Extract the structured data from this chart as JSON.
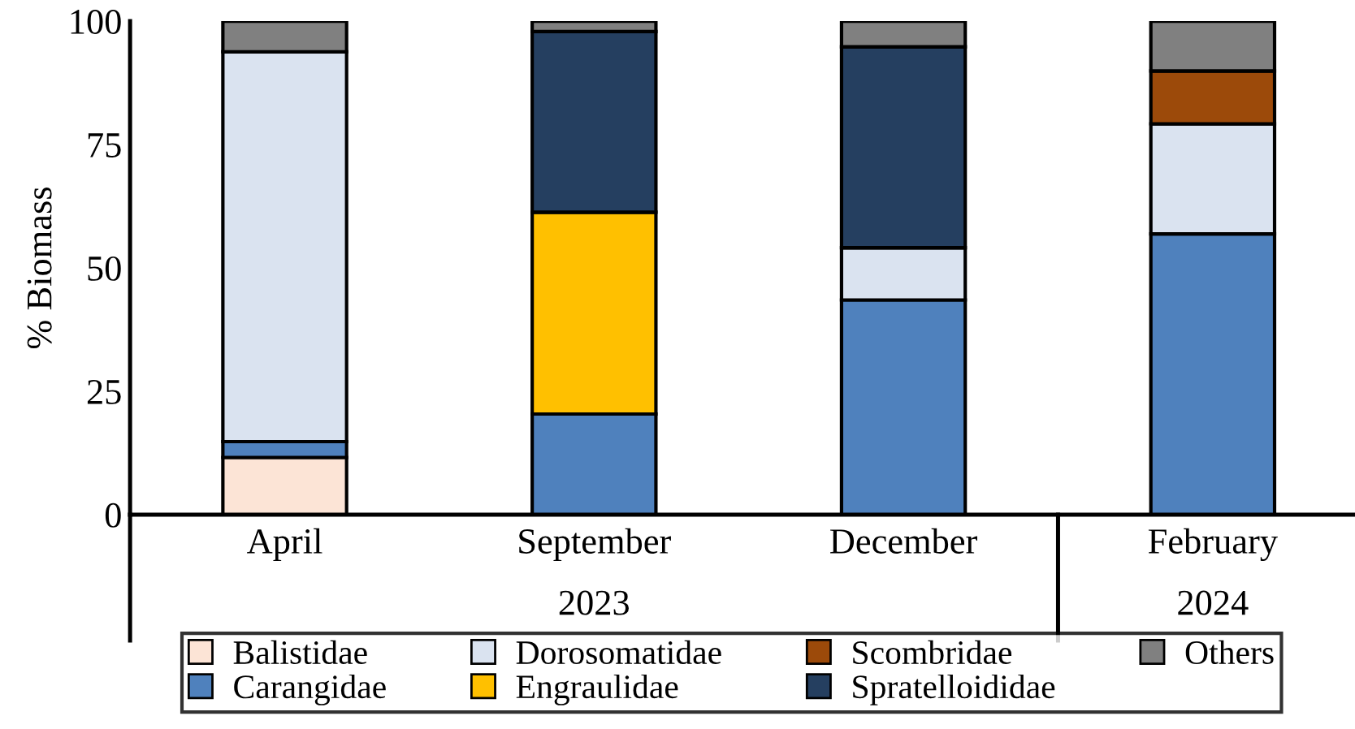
{
  "chart_data": {
    "type": "bar",
    "stacked": true,
    "ylabel": "% Biomass",
    "categories": [
      "April",
      "September",
      "December",
      "February"
    ],
    "series": [
      {
        "name": "Balistidae",
        "color": "#fce4d6",
        "values": [
          11.6,
          0,
          0,
          0
        ]
      },
      {
        "name": "Carangidae",
        "color": "#4f81bd",
        "values": [
          3.2,
          20.4,
          43.5,
          56.9
        ]
      },
      {
        "name": "Dorosomatidae",
        "color": "#dae3f0",
        "values": [
          79.0,
          0,
          10.6,
          22.3
        ]
      },
      {
        "name": "Engraulidae",
        "color": "#ffc000",
        "values": [
          0,
          40.9,
          0,
          0
        ]
      },
      {
        "name": "Scombridae",
        "color": "#9c4a0a",
        "values": [
          0,
          0,
          0,
          10.7
        ]
      },
      {
        "name": "Spratelloididae",
        "color": "#253f60",
        "values": [
          0,
          36.6,
          40.7,
          0
        ]
      },
      {
        "name": "Others",
        "color": "#808080",
        "values": [
          6.2,
          2.1,
          5.2,
          10.1
        ]
      }
    ],
    "ylim": [
      0,
      100
    ],
    "yticks": [
      0,
      25,
      50,
      75,
      100
    ],
    "annotations": [
      "2023",
      "2024"
    ],
    "grid": false,
    "legend": "bottom"
  }
}
